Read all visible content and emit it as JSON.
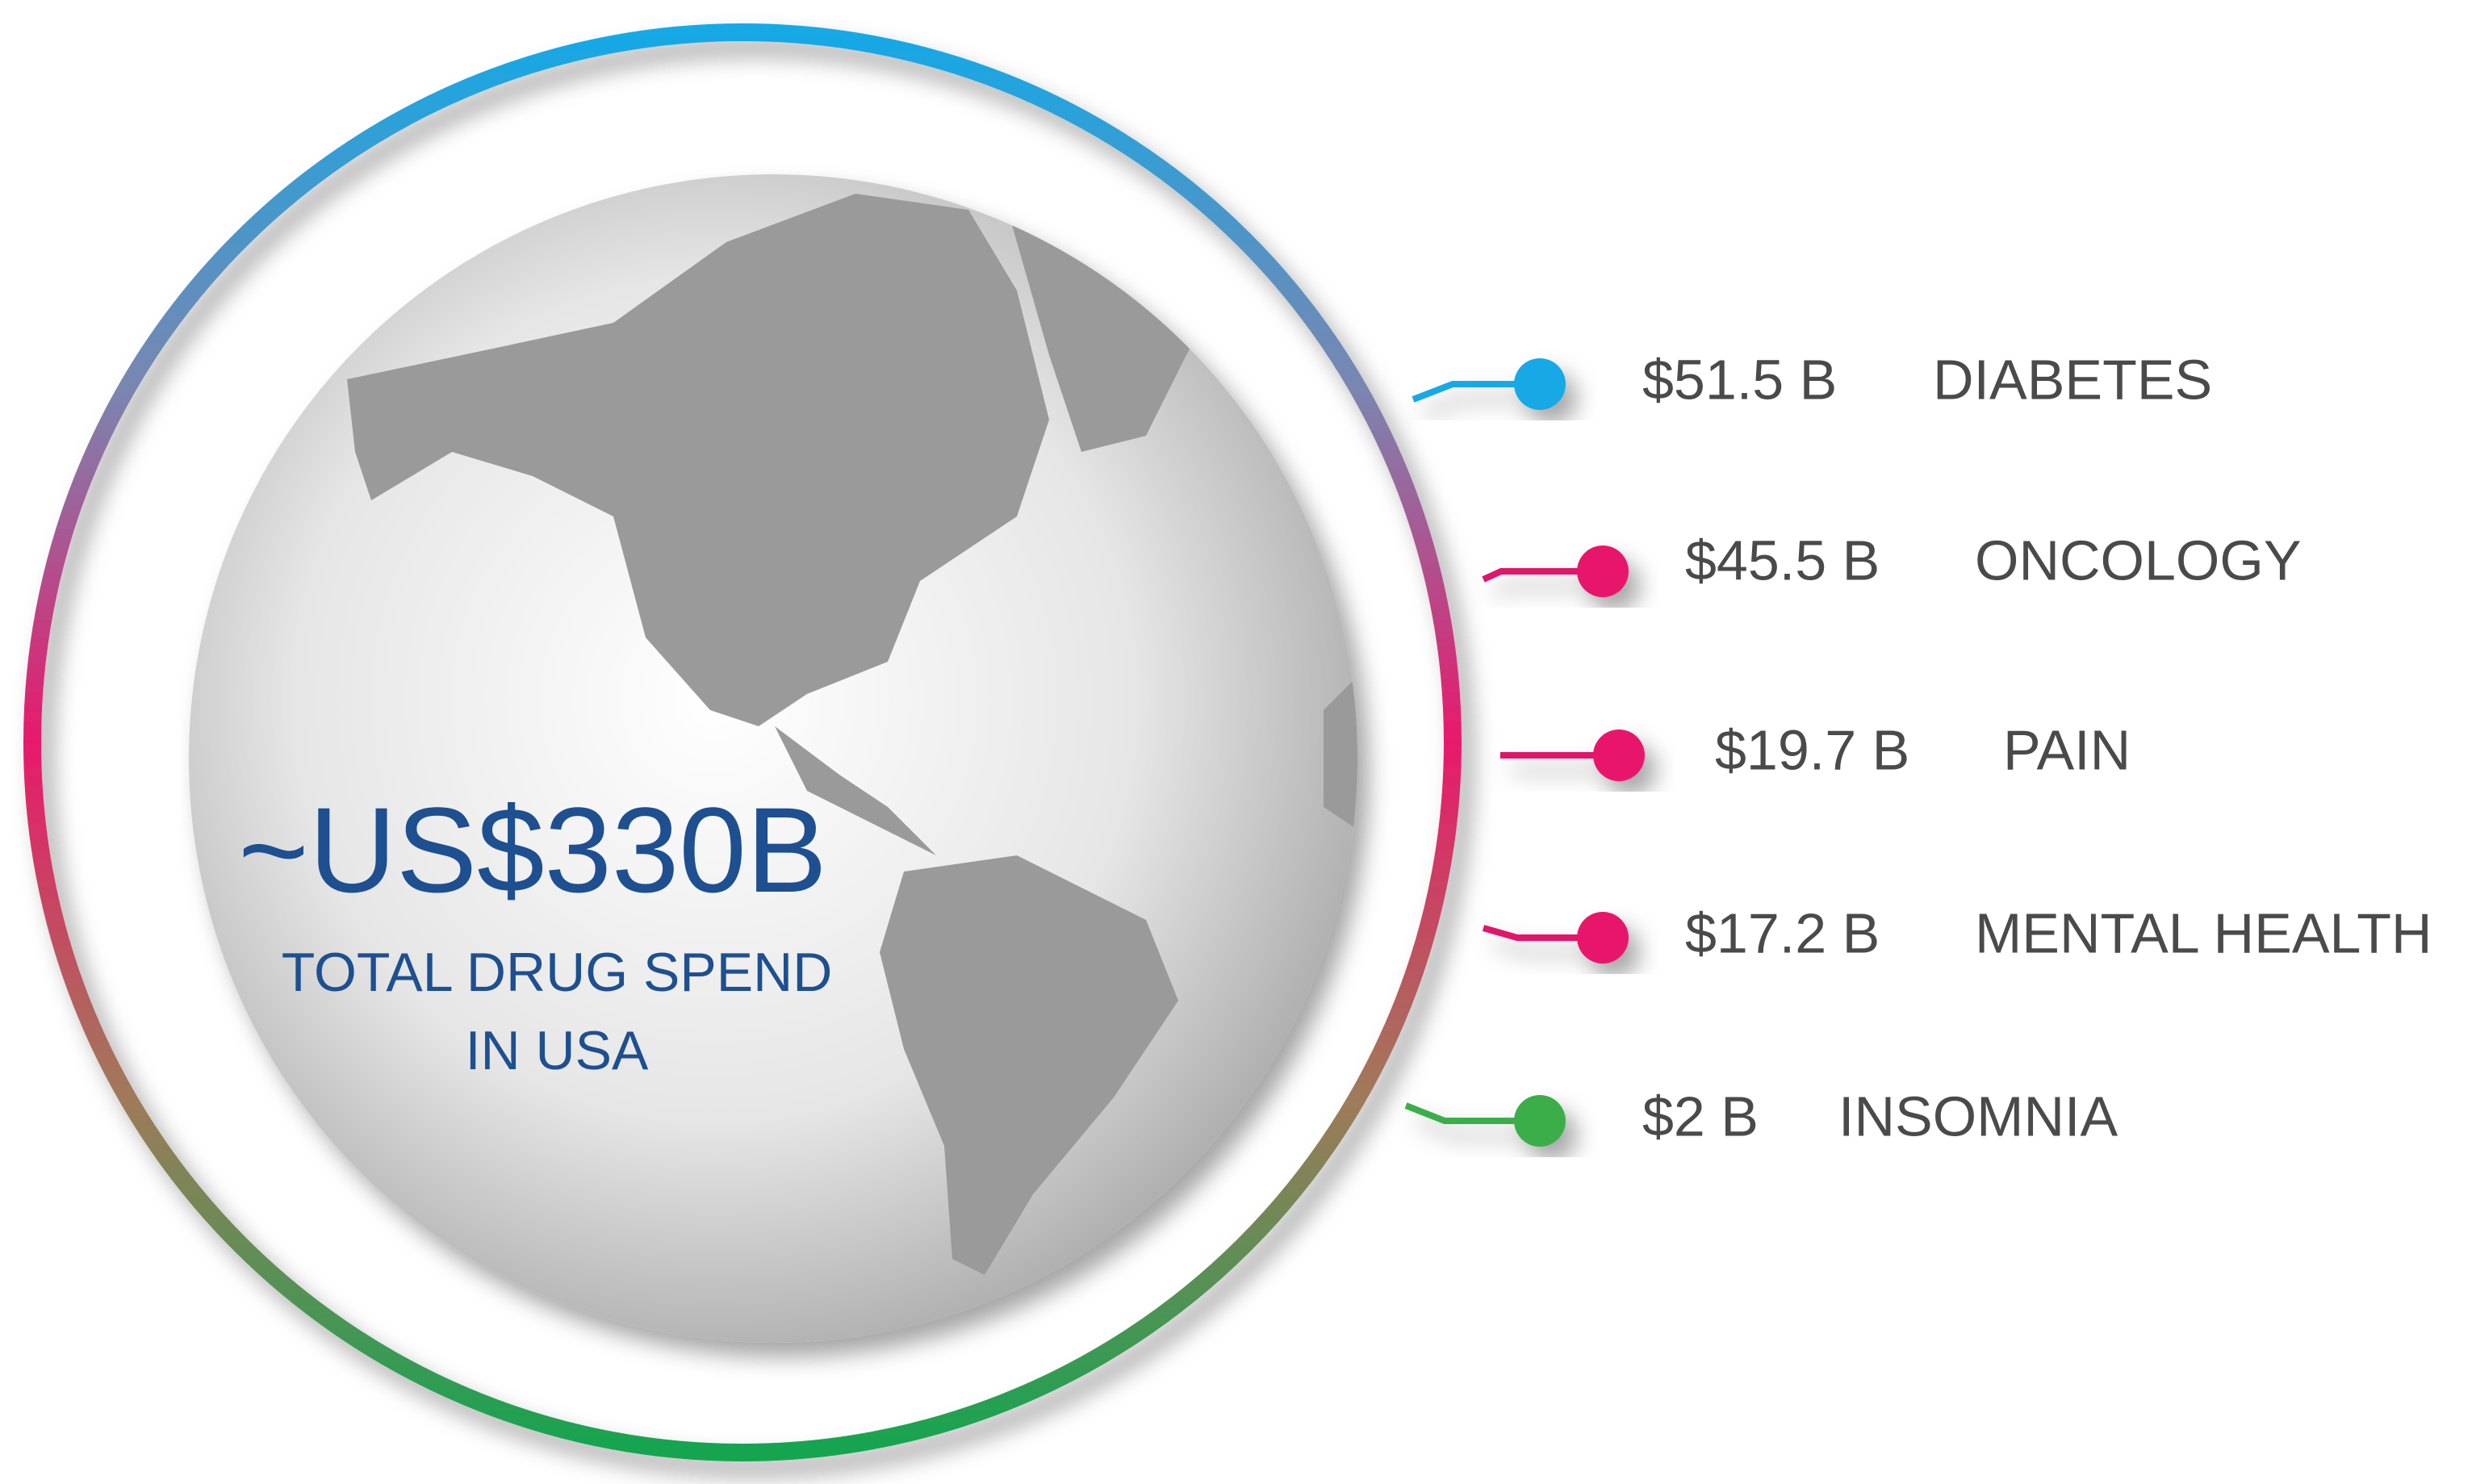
{
  "headline": "~US$330B",
  "subtitle": [
    "TOTAL DRUG SPEND",
    "IN USA"
  ],
  "items": [
    {
      "amount": "$51.5 B",
      "label": "DIABETES"
    },
    {
      "amount": "$45.5 B",
      "label": "ONCOLOGY"
    },
    {
      "amount": "$19.7 B",
      "label": "PAIN"
    },
    {
      "amount": "$17.2 B",
      "label": "MENTAL HEALTH"
    },
    {
      "amount": "$2 B",
      "label": "INSOMNIA"
    }
  ]
}
